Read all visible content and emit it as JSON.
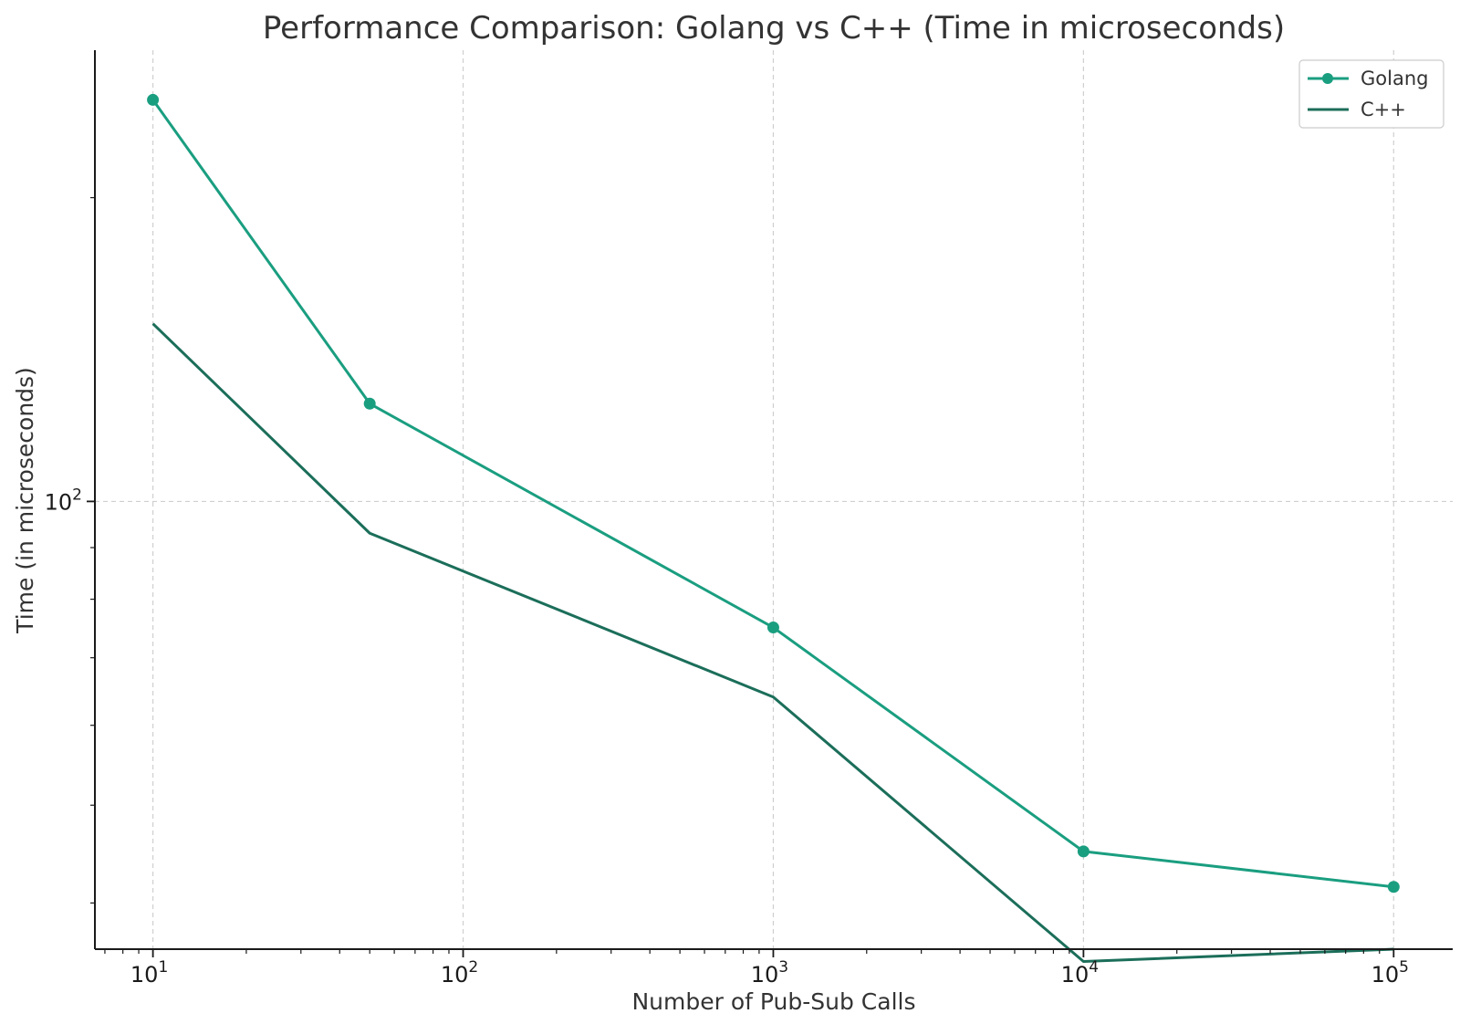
{
  "chart_data": {
    "type": "line",
    "title": "Performance Comparison: Golang vs C++ (Time in microseconds)",
    "xlabel": "Number of Pub-Sub Calls",
    "ylabel": "Time (in microseconds)",
    "xscale": "log",
    "yscale": "log",
    "xlim": [
      6.5,
      155000
    ],
    "ylim": [
      36,
      280
    ],
    "x": [
      10,
      50,
      1000,
      10000,
      100000
    ],
    "x_ticks": [
      {
        "base": "10",
        "exp": "1",
        "value": 10
      },
      {
        "base": "10",
        "exp": "2",
        "value": 100
      },
      {
        "base": "10",
        "exp": "3",
        "value": 1000
      },
      {
        "base": "10",
        "exp": "4",
        "value": 10000
      },
      {
        "base": "10",
        "exp": "5",
        "value": 100000
      }
    ],
    "y_ticks": [
      {
        "base": "10",
        "exp": "2",
        "value": 100
      }
    ],
    "grid": true,
    "legend_position": "top-right",
    "series": [
      {
        "name": "Golang",
        "values": [
          250,
          125,
          75,
          45,
          41.5
        ],
        "color": "#1a9e80",
        "marker": "circle"
      },
      {
        "name": "C++",
        "values": [
          150,
          93,
          64,
          35,
          36
        ],
        "color": "#1b6e5a",
        "marker": "none"
      }
    ]
  }
}
